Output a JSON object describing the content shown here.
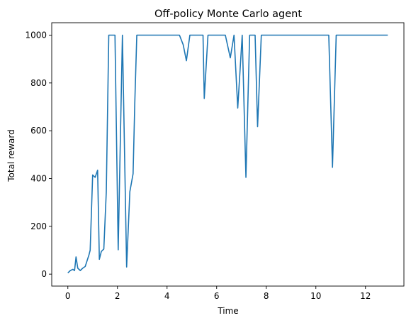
{
  "chart_data": {
    "type": "line",
    "title": "Off-policy Monte Carlo agent",
    "xlabel": "Time",
    "ylabel": "Total reward",
    "xlim": [
      -0.65,
      13.55
    ],
    "ylim": [
      -50,
      1052
    ],
    "x_ticks": [
      0,
      2,
      4,
      6,
      8,
      10,
      12
    ],
    "y_ticks": [
      0,
      200,
      400,
      600,
      800,
      1000
    ],
    "grid": false,
    "legend": "none",
    "series": [
      {
        "color": "#1f77b4",
        "points": [
          [
            0.0,
            5
          ],
          [
            0.1,
            15
          ],
          [
            0.2,
            20
          ],
          [
            0.27,
            15
          ],
          [
            0.33,
            72
          ],
          [
            0.4,
            25
          ],
          [
            0.5,
            15
          ],
          [
            0.6,
            25
          ],
          [
            0.7,
            32
          ],
          [
            0.85,
            80
          ],
          [
            0.9,
            100
          ],
          [
            1.0,
            415
          ],
          [
            1.1,
            405
          ],
          [
            1.2,
            435
          ],
          [
            1.27,
            62
          ],
          [
            1.35,
            95
          ],
          [
            1.45,
            105
          ],
          [
            1.55,
            345
          ],
          [
            1.65,
            1000
          ],
          [
            1.8,
            1000
          ],
          [
            1.9,
            1000
          ],
          [
            2.03,
            102
          ],
          [
            2.2,
            1000
          ],
          [
            2.37,
            30
          ],
          [
            2.5,
            345
          ],
          [
            2.63,
            420
          ],
          [
            2.7,
            720
          ],
          [
            2.78,
            1000
          ],
          [
            3.5,
            1000
          ],
          [
            4.5,
            1000
          ],
          [
            4.65,
            960
          ],
          [
            4.78,
            893
          ],
          [
            4.92,
            1000
          ],
          [
            5.3,
            1000
          ],
          [
            5.45,
            1000
          ],
          [
            5.5,
            735
          ],
          [
            5.65,
            1000
          ],
          [
            6.35,
            1000
          ],
          [
            6.55,
            905
          ],
          [
            6.7,
            1000
          ],
          [
            6.85,
            695
          ],
          [
            7.03,
            1000
          ],
          [
            7.18,
            405
          ],
          [
            7.33,
            1000
          ],
          [
            7.55,
            1000
          ],
          [
            7.65,
            617
          ],
          [
            7.8,
            1000
          ],
          [
            9.0,
            1000
          ],
          [
            10.52,
            1000
          ],
          [
            10.67,
            447
          ],
          [
            10.82,
            1000
          ],
          [
            12.0,
            1000
          ],
          [
            12.9,
            1000
          ]
        ]
      }
    ]
  }
}
